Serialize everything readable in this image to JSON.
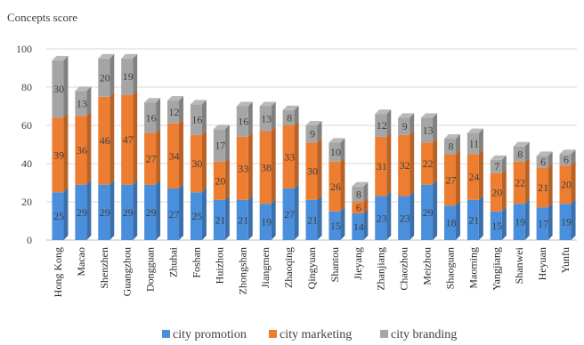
{
  "chart_data": {
    "type": "bar",
    "stacked": true,
    "style": "3d-column",
    "title": "",
    "ylabel": "Concepts score",
    "xlabel": "",
    "ylim": [
      0,
      100
    ],
    "yticks": [
      0,
      20,
      40,
      60,
      80,
      100
    ],
    "grid": true,
    "legend_position": "bottom",
    "categories": [
      "Hong Kong",
      "Macao",
      "Shenzhen",
      "Guangzhou",
      "Dongguan",
      "Zhuhai",
      "Foshan",
      "Huizhou",
      "Zhongshan",
      "Jiangmen",
      "Zhaoqing",
      "Qingyuan",
      "Shantou",
      "Jieyang",
      "Zhanjiang",
      "Chaozhou",
      "Meizhou",
      "Shaoguan",
      "Maoming",
      "Yangjiang",
      "Shanwei",
      "Heyuan",
      "Yunfu"
    ],
    "series": [
      {
        "name": "city promotion",
        "color": "#4a8fdc",
        "values": [
          25,
          29,
          29,
          29,
          29,
          27,
          25,
          21,
          21,
          19,
          27,
          21,
          15,
          14,
          23,
          23,
          29,
          18,
          21,
          15,
          19,
          17,
          19
        ]
      },
      {
        "name": "city marketing",
        "color": "#ed7d31",
        "values": [
          39,
          36,
          46,
          47,
          27,
          34,
          30,
          20,
          33,
          38,
          33,
          30,
          26,
          6,
          31,
          32,
          22,
          27,
          24,
          20,
          22,
          21,
          20
        ]
      },
      {
        "name": "city branding",
        "color": "#a5a5a5",
        "values": [
          30,
          13,
          20,
          19,
          16,
          12,
          16,
          17,
          16,
          13,
          8,
          9,
          10,
          8,
          12,
          9,
          13,
          8,
          11,
          7,
          8,
          6,
          6
        ]
      }
    ]
  }
}
